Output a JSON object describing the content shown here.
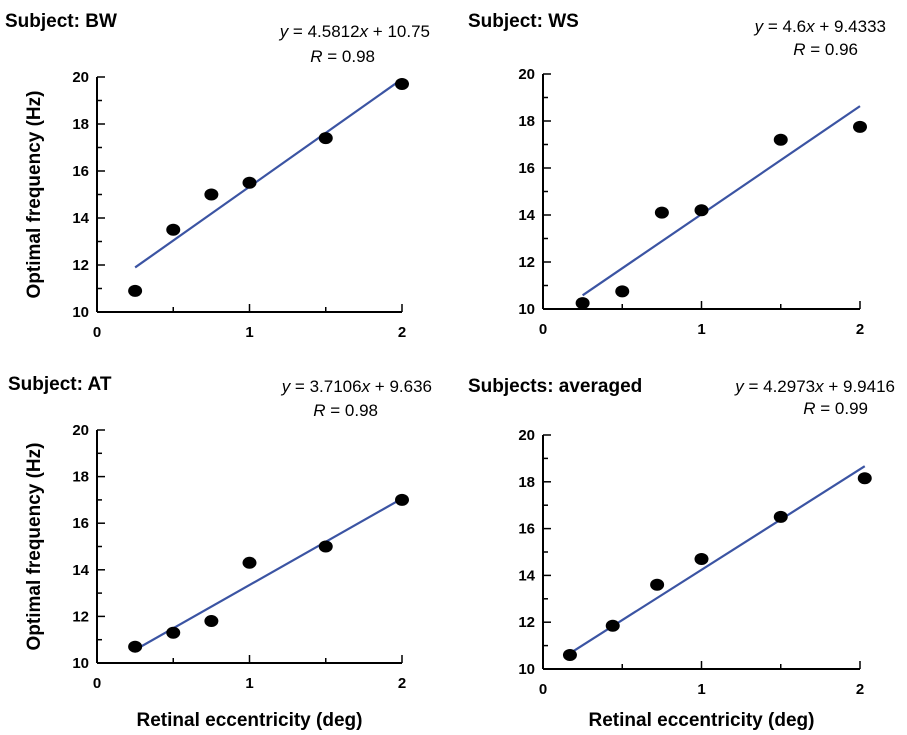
{
  "chart_data": [
    {
      "type": "scatter",
      "title": "Subject: BW",
      "equation": {
        "slope": "4.5812",
        "intercept": "10.75"
      },
      "r": "0.98",
      "ylabel": "Optimal frequency (Hz)",
      "xlabel": "",
      "xlim": [
        0,
        2
      ],
      "ylim": [
        10,
        20
      ],
      "xticks": [
        "0",
        "1",
        "2"
      ],
      "yticks": [
        "10",
        "12",
        "14",
        "16",
        "18",
        "20"
      ],
      "points": [
        {
          "x": 0.25,
          "y": 10.9
        },
        {
          "x": 0.5,
          "y": 13.5
        },
        {
          "x": 0.75,
          "y": 15.0
        },
        {
          "x": 1.0,
          "y": 15.5
        },
        {
          "x": 1.5,
          "y": 17.4
        },
        {
          "x": 2.0,
          "y": 19.7
        }
      ],
      "fit": {
        "x0": 0.25,
        "x1": 2.0,
        "slope": 4.5812,
        "intercept": 10.75
      }
    },
    {
      "type": "scatter",
      "title": "Subject: WS",
      "equation": {
        "slope": "4.6",
        "intercept": "9.4333"
      },
      "r": "0.96",
      "ylabel": "",
      "xlabel": "",
      "xlim": [
        0,
        2
      ],
      "ylim": [
        10,
        20
      ],
      "xticks": [
        "0",
        "1",
        "2"
      ],
      "yticks": [
        "10",
        "12",
        "14",
        "16",
        "18",
        "20"
      ],
      "points": [
        {
          "x": 0.25,
          "y": 10.25
        },
        {
          "x": 0.5,
          "y": 10.75
        },
        {
          "x": 0.75,
          "y": 14.1
        },
        {
          "x": 1.0,
          "y": 14.2
        },
        {
          "x": 1.5,
          "y": 17.2
        },
        {
          "x": 2.0,
          "y": 17.75
        }
      ],
      "fit": {
        "x0": 0.25,
        "x1": 2.0,
        "slope": 4.6,
        "intercept": 9.4333
      }
    },
    {
      "type": "scatter",
      "title": "Subject: AT",
      "equation": {
        "slope": "3.7106",
        "intercept": "9.636"
      },
      "r": "0.98",
      "ylabel": "Optimal frequency (Hz)",
      "xlabel": "Retinal eccentricity (deg)",
      "xlim": [
        0,
        2
      ],
      "ylim": [
        10,
        20
      ],
      "xticks": [
        "0",
        "1",
        "2"
      ],
      "yticks": [
        "10",
        "12",
        "14",
        "16",
        "18",
        "20"
      ],
      "points": [
        {
          "x": 0.25,
          "y": 10.7
        },
        {
          "x": 0.5,
          "y": 11.3
        },
        {
          "x": 0.75,
          "y": 11.8
        },
        {
          "x": 1.0,
          "y": 14.3
        },
        {
          "x": 1.5,
          "y": 15.0
        },
        {
          "x": 2.0,
          "y": 17.0
        }
      ],
      "fit": {
        "x0": 0.25,
        "x1": 2.0,
        "slope": 3.7106,
        "intercept": 9.636
      }
    },
    {
      "type": "scatter",
      "title": "Subjects: averaged",
      "equation": {
        "slope": "4.2973",
        "intercept": "9.9416"
      },
      "r": "0.99",
      "ylabel": "",
      "xlabel": "Retinal eccentricity (deg)",
      "xlim": [
        0,
        2
      ],
      "ylim": [
        10,
        20
      ],
      "xticks": [
        "0",
        "1",
        "2"
      ],
      "yticks": [
        "10",
        "12",
        "14",
        "16",
        "18",
        "20"
      ],
      "points": [
        {
          "x": 0.17,
          "y": 10.6
        },
        {
          "x": 0.44,
          "y": 11.85
        },
        {
          "x": 0.72,
          "y": 13.6
        },
        {
          "x": 1.0,
          "y": 14.7
        },
        {
          "x": 1.5,
          "y": 16.5
        },
        {
          "x": 2.03,
          "y": 18.15
        }
      ],
      "fit": {
        "x0": 0.17,
        "x1": 2.03,
        "slope": 4.2973,
        "intercept": 9.9416
      }
    }
  ],
  "colors": {
    "fit_line": "#3b54a3",
    "marker": "#000000",
    "axis": "#000000"
  }
}
